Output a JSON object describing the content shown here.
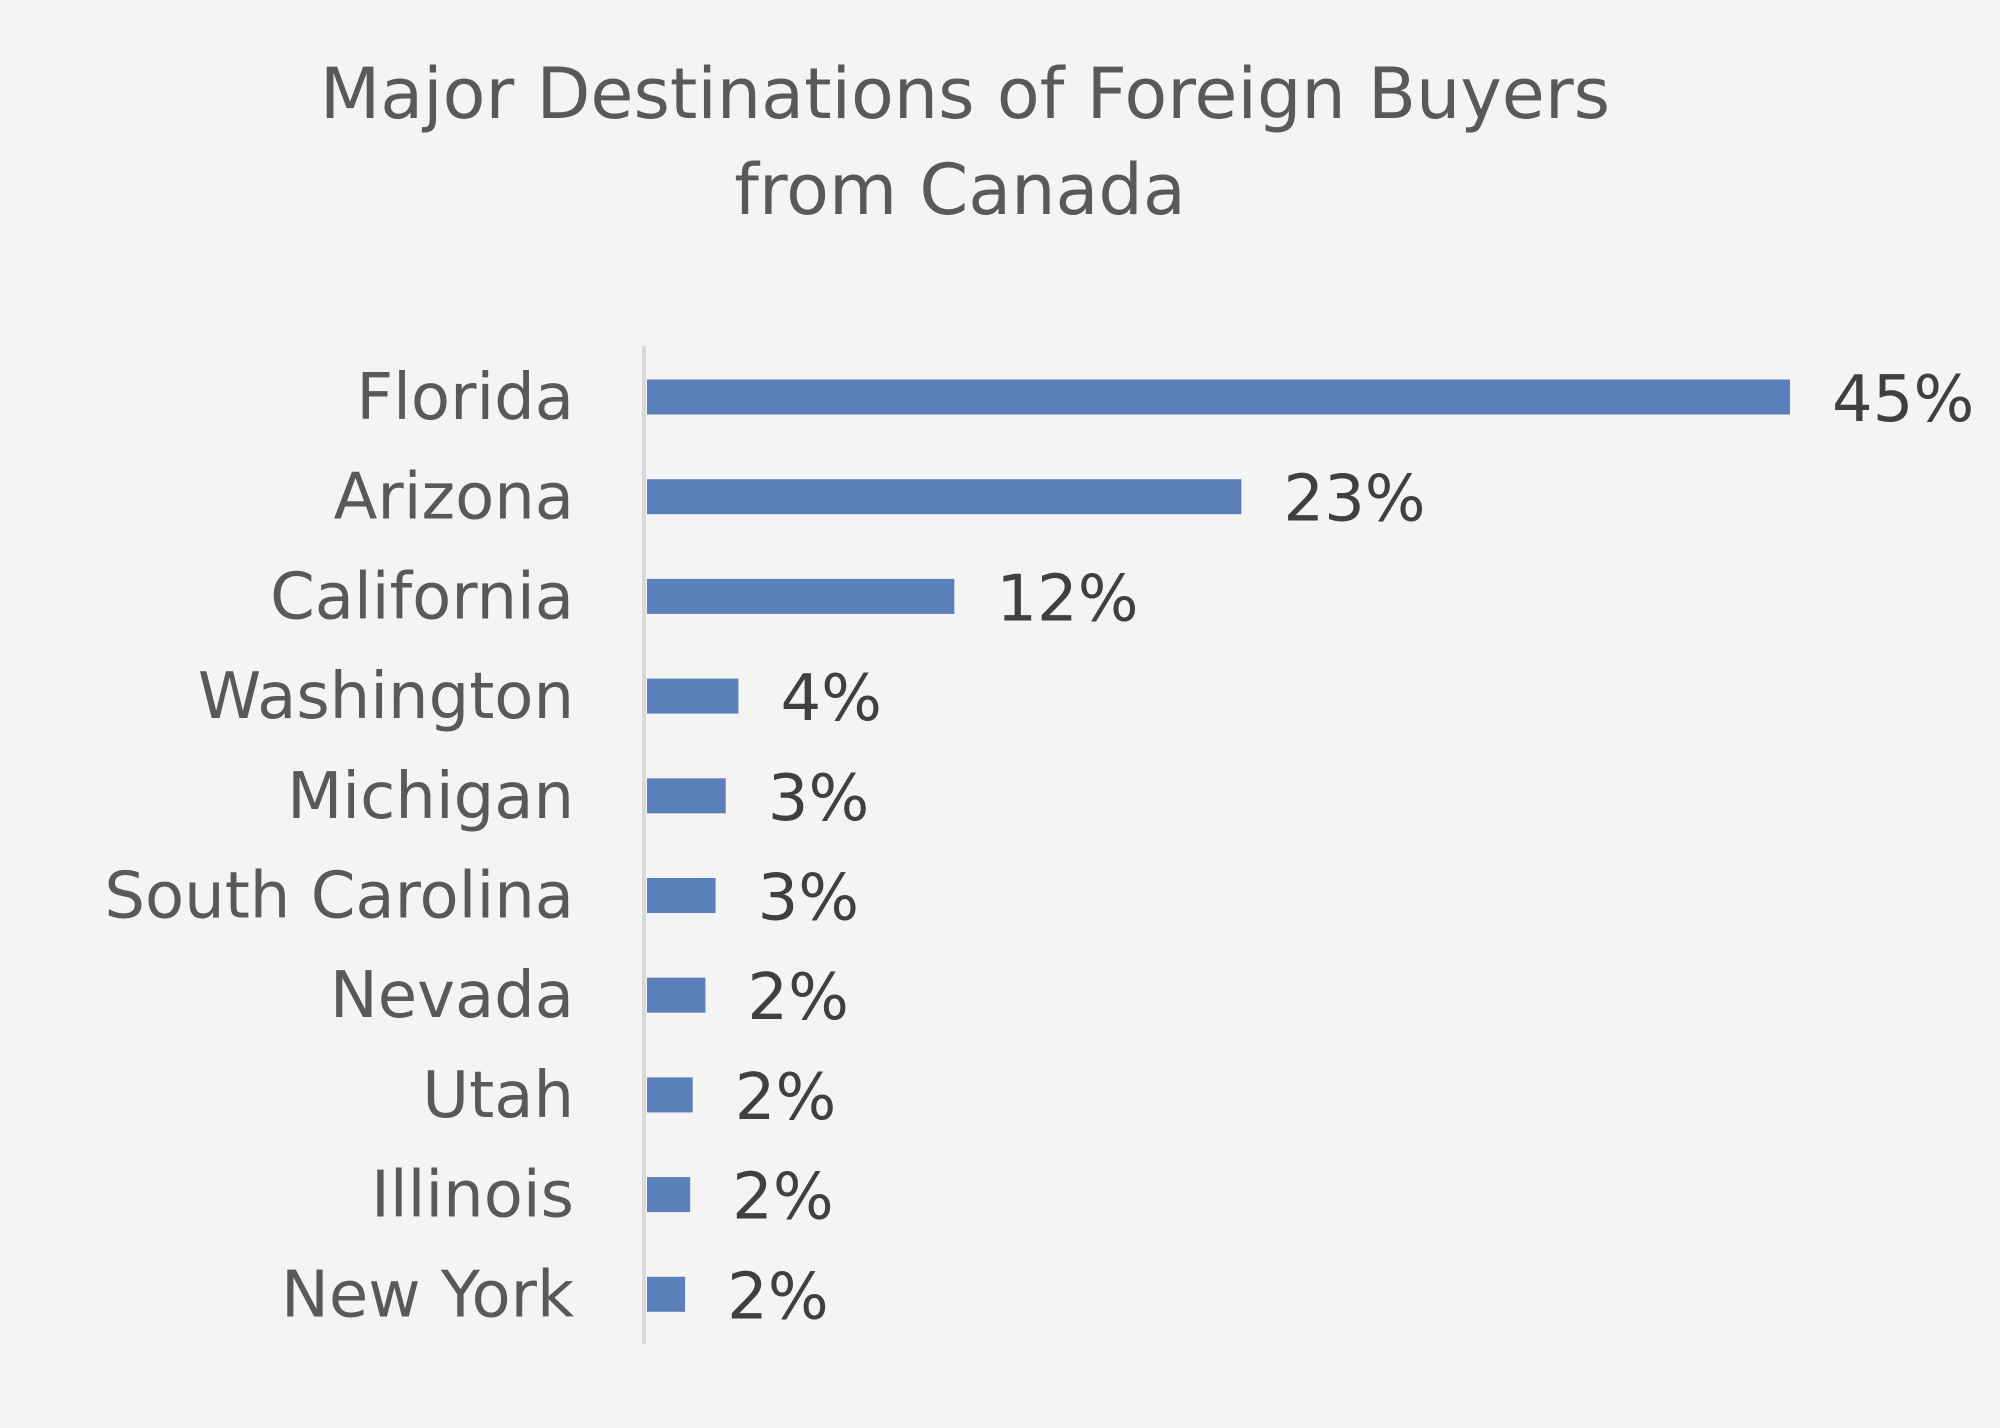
{
  "chart_data": {
    "type": "bar",
    "orientation": "horizontal",
    "title": "Major Destinations of Foreign Buyers from Canada",
    "title_lines": [
      "Major Destinations of Foreign Buyers",
      "from Canada"
    ],
    "categories": [
      "Florida",
      "Arizona",
      "California",
      "Washington",
      "Michigan",
      "South Carolina",
      "Nevada",
      "Utah",
      "Illinois",
      "New York"
    ],
    "values": [
      45,
      23,
      12,
      4,
      3,
      3,
      2,
      2,
      2,
      2
    ],
    "plotted_values": [
      45,
      23.4,
      12.1,
      3.6,
      3.1,
      2.7,
      2.3,
      1.8,
      1.7,
      1.5
    ],
    "value_labels": [
      "45%",
      "23%",
      "12%",
      "4%",
      "3%",
      "3%",
      "2%",
      "2%",
      "2%",
      "2%"
    ],
    "unit": "%",
    "xlim": [
      0,
      45
    ],
    "grid": false,
    "legend": "none",
    "colors": {
      "bar": "#5b7fb8",
      "axis": "#d9d9d9",
      "background": "#f4f4f4",
      "title": "#595959",
      "category_text": "#595959",
      "value_text": "#404040"
    }
  }
}
